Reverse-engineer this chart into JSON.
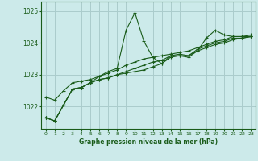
{
  "title": "Graphe pression niveau de la mer (hPa)",
  "bg_color": "#cceaea",
  "grid_color": "#aacccc",
  "line_color": "#1a5c1a",
  "xlim": [
    -0.5,
    23.5
  ],
  "ylim": [
    1021.3,
    1025.3
  ],
  "yticks": [
    1022,
    1023,
    1024,
    1025
  ],
  "xticks": [
    0,
    1,
    2,
    3,
    4,
    5,
    6,
    7,
    8,
    9,
    10,
    11,
    12,
    13,
    14,
    15,
    16,
    17,
    18,
    19,
    20,
    21,
    22,
    23
  ],
  "series": [
    [
      1021.65,
      1021.55,
      1022.05,
      1022.55,
      1022.6,
      1022.75,
      1022.95,
      1023.1,
      1023.2,
      1024.4,
      1024.95,
      1024.05,
      1023.55,
      1023.35,
      1023.6,
      1023.6,
      1023.55,
      1023.75,
      1024.15,
      1024.4,
      1024.25,
      1024.2,
      1024.2,
      1024.2
    ],
    [
      1021.65,
      1021.55,
      1022.05,
      1022.55,
      1022.6,
      1022.75,
      1022.85,
      1022.9,
      1023.0,
      1023.05,
      1023.1,
      1023.15,
      1023.25,
      1023.35,
      1023.55,
      1023.6,
      1023.6,
      1023.75,
      1023.85,
      1023.95,
      1024.0,
      1024.1,
      1024.15,
      1024.2
    ],
    [
      1021.65,
      1021.55,
      1022.05,
      1022.55,
      1022.6,
      1022.75,
      1022.85,
      1022.9,
      1023.0,
      1023.1,
      1023.2,
      1023.3,
      1023.4,
      1023.45,
      1023.6,
      1023.65,
      1023.6,
      1023.8,
      1023.9,
      1024.0,
      1024.05,
      1024.15,
      1024.15,
      1024.2
    ],
    [
      1022.3,
      1022.2,
      1022.5,
      1022.75,
      1022.8,
      1022.85,
      1022.95,
      1023.05,
      1023.15,
      1023.3,
      1023.4,
      1023.5,
      1023.55,
      1023.6,
      1023.65,
      1023.7,
      1023.75,
      1023.85,
      1023.95,
      1024.05,
      1024.1,
      1024.2,
      1024.2,
      1024.25
    ]
  ]
}
